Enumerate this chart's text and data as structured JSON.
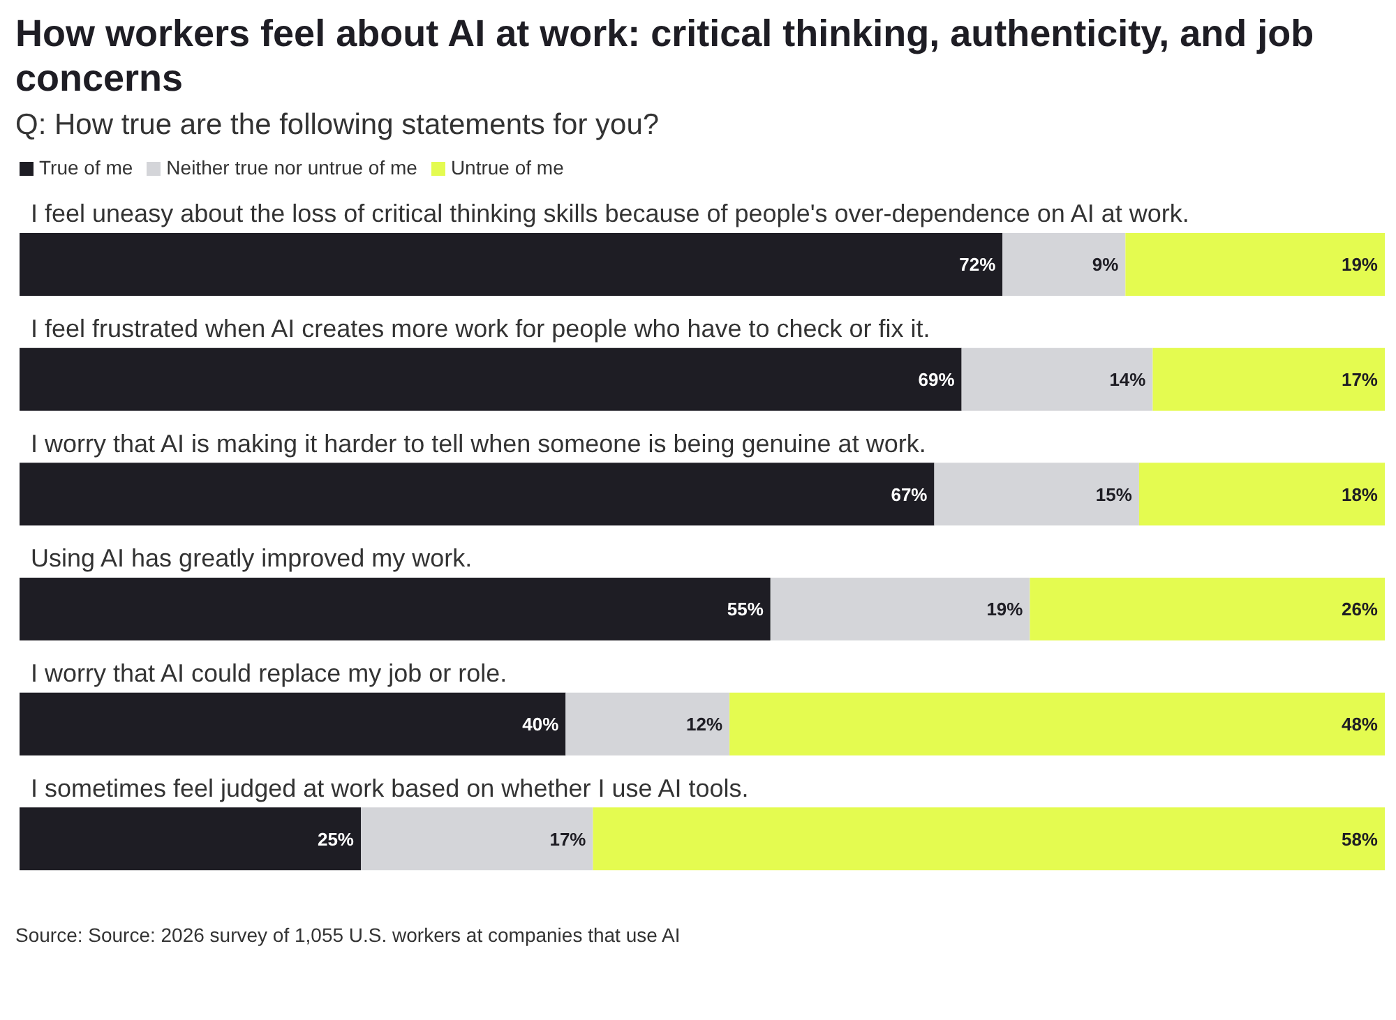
{
  "chart_data": {
    "type": "bar",
    "orientation": "horizontal",
    "stacked": true,
    "title": "How workers feel about AI at work: critical thinking, authenticity, and job concerns",
    "subtitle": "Q: How true are the following statements for you?",
    "categories": [
      "I feel uneasy about the loss of critical thinking skills because of people's over-dependence on AI at work.",
      "I feel frustrated when AI creates more work for people who have to check or fix it.",
      "I worry that AI is making it harder to tell when someone is being genuine at work.",
      "Using AI has greatly improved my work.",
      "I worry that AI could replace my job or role.",
      "I sometimes feel judged at work based on whether I use AI tools."
    ],
    "series": [
      {
        "name": "True of me",
        "color": "#1e1d24",
        "values": [
          72,
          69,
          67,
          55,
          40,
          25
        ],
        "value_labels": [
          "72%",
          "69%",
          "67%",
          "55%",
          "40%",
          "25%"
        ]
      },
      {
        "name": "Neither true nor untrue of me",
        "color": "#d4d5d9",
        "values": [
          9,
          14,
          15,
          19,
          12,
          17
        ],
        "value_labels": [
          "9%",
          "14%",
          "15%",
          "19%",
          "12%",
          "17%"
        ]
      },
      {
        "name": "Untrue of me",
        "color": "#e4fb50",
        "values": [
          19,
          17,
          18,
          26,
          48,
          58
        ],
        "value_labels": [
          "19%",
          "17%",
          "18%",
          "26%",
          "48%",
          "58%"
        ]
      }
    ],
    "xlim": [
      0,
      100
    ],
    "tick_labels": "y",
    "legend": "top left",
    "annotations": [
      "Source: Source: 2026 survey of 1,055 U.S. workers at companies that use AI"
    ]
  }
}
